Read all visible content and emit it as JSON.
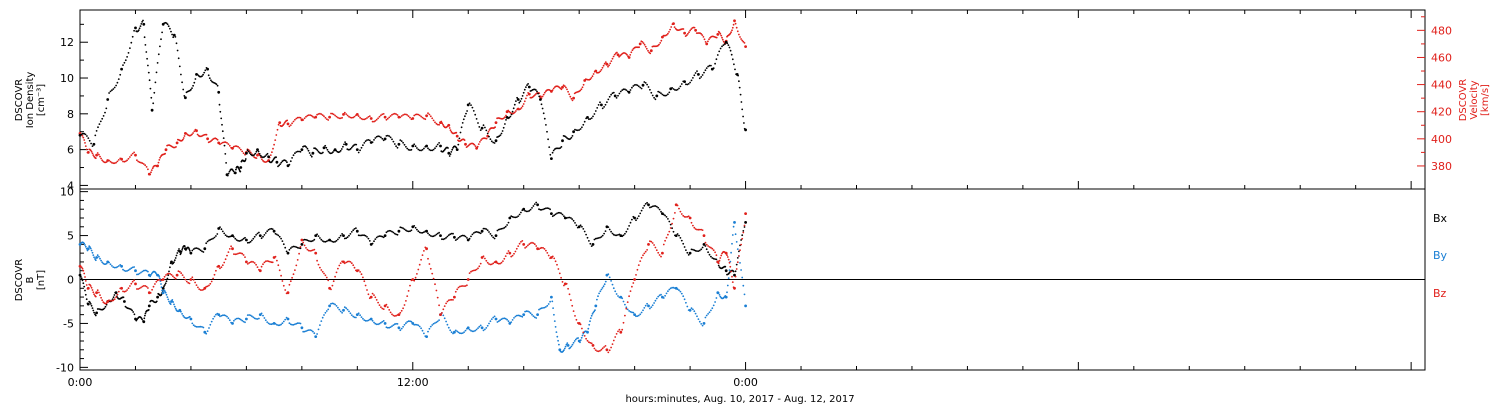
{
  "chart_data": [
    {
      "type": "scatter",
      "panel": "top",
      "ylabel_left": [
        "DSCOVR",
        "Ion Density",
        "[cm⁻³]"
      ],
      "ylabel_right": [
        "DSCOVR",
        "Velocity",
        "[km/s]"
      ],
      "ylim_left": [
        3.8,
        13.8
      ],
      "ylim_right": [
        363,
        495
      ],
      "left_ticks": [
        "4",
        "6",
        "8",
        "10",
        "12"
      ],
      "right_ticks": [
        "380",
        "400",
        "420",
        "440",
        "460",
        "480"
      ],
      "series": [
        {
          "name": "Ion Density",
          "color": "#000000",
          "axis": "left",
          "x": [
            0.0,
            0.5,
            1.0,
            1.5,
            2.0,
            2.3,
            2.6,
            3.0,
            3.4,
            3.8,
            4.2,
            4.6,
            5.0,
            5.3,
            5.6,
            5.8,
            6.0,
            6.4,
            6.8,
            7.1,
            7.5,
            8.0,
            8.4,
            8.8,
            9.2,
            9.6,
            10.0,
            10.5,
            11.0,
            11.5,
            12.0,
            12.5,
            13.0,
            13.3,
            13.6,
            14.0,
            14.5,
            15.0,
            15.4,
            15.8,
            16.2,
            16.6,
            17.0,
            17.4,
            17.8,
            18.3,
            18.8,
            19.3,
            19.8,
            20.3,
            20.8,
            21.3,
            21.8,
            22.3,
            22.8,
            23.3,
            23.7,
            24.0
          ],
          "y": [
            6.8,
            6.3,
            8.8,
            10.5,
            12.8,
            13.0,
            8.2,
            13.0,
            12.4,
            8.9,
            10.2,
            10.5,
            9.2,
            4.6,
            4.7,
            5.0,
            5.8,
            6.0,
            5.6,
            5.3,
            5.1,
            6.0,
            5.8,
            6.1,
            6.0,
            6.3,
            6.0,
            6.4,
            6.6,
            6.3,
            6.2,
            6.2,
            6.2,
            5.8,
            6.0,
            8.5,
            7.2,
            6.5,
            7.8,
            8.8,
            9.5,
            8.8,
            5.5,
            6.5,
            7.0,
            7.8,
            8.5,
            9.0,
            9.2,
            9.6,
            9.0,
            9.4,
            9.8,
            10.2,
            10.5,
            12.0,
            10.2,
            7.1
          ]
        },
        {
          "name": "Velocity",
          "color": "#e0201b",
          "axis": "right",
          "x": [
            0.0,
            0.3,
            0.6,
            1.0,
            1.5,
            2.0,
            2.5,
            2.8,
            3.1,
            3.5,
            3.8,
            4.2,
            4.6,
            5.0,
            5.5,
            6.0,
            6.4,
            6.8,
            7.2,
            7.5,
            8.0,
            8.5,
            9.0,
            9.5,
            10.0,
            10.5,
            11.0,
            11.5,
            12.0,
            12.5,
            13.0,
            13.3,
            13.6,
            13.9,
            14.3,
            14.7,
            15.0,
            15.4,
            15.8,
            16.2,
            16.6,
            17.0,
            17.4,
            17.8,
            18.2,
            18.6,
            19.0,
            19.4,
            19.8,
            20.2,
            20.6,
            21.0,
            21.4,
            21.8,
            22.2,
            22.6,
            23.0,
            23.3,
            23.6,
            24.0
          ],
          "y": [
            404,
            390,
            388,
            384,
            385,
            388,
            374,
            380,
            392,
            397,
            404,
            406,
            400,
            397,
            393,
            390,
            388,
            384,
            412,
            411,
            414,
            416,
            416,
            418,
            418,
            415,
            416,
            416,
            415,
            417,
            412,
            410,
            402,
            396,
            393,
            402,
            412,
            420,
            422,
            433,
            431,
            435,
            438,
            430,
            443,
            450,
            455,
            462,
            460,
            470,
            465,
            475,
            485,
            478,
            480,
            470,
            477,
            472,
            487,
            468
          ]
        }
      ]
    },
    {
      "type": "scatter",
      "panel": "bottom",
      "ylabel_left": [
        "DSCOVR",
        "B",
        "[nT]"
      ],
      "ylim": [
        -10.3,
        10.3
      ],
      "left_ticks": [
        "-10",
        "-5",
        "0",
        "5",
        "10"
      ],
      "legend": [
        "Bx",
        "By",
        "Bz"
      ],
      "xlabel": "hours:minutes, Aug. 10, 2017 - Aug. 12, 2017",
      "xlim": [
        0,
        48.5
      ],
      "x_ticks": [
        {
          "t": 0,
          "label": "0:00"
        },
        {
          "t": 12,
          "label": "12:00"
        },
        {
          "t": 24,
          "label": "0:00"
        }
      ],
      "series": [
        {
          "name": "Bx",
          "color": "#000000",
          "x": [
            0.0,
            0.3,
            0.6,
            1.0,
            1.3,
            1.6,
            2.0,
            2.3,
            2.5,
            2.8,
            3.0,
            3.3,
            3.6,
            3.8,
            4.0,
            4.5,
            5.0,
            5.5,
            6.0,
            6.5,
            7.0,
            7.5,
            8.0,
            8.5,
            9.0,
            9.5,
            10.0,
            10.5,
            11.0,
            11.5,
            12.0,
            12.5,
            13.0,
            13.5,
            14.0,
            14.5,
            15.0,
            15.5,
            16.0,
            16.5,
            17.0,
            17.5,
            18.0,
            18.5,
            19.0,
            19.5,
            20.0,
            20.5,
            21.0,
            21.5,
            22.0,
            22.5,
            23.0,
            23.3,
            23.6,
            24.0
          ],
          "y": [
            0.5,
            -2.8,
            -3.8,
            -2.5,
            -1.5,
            -2.5,
            -4.5,
            -4.8,
            -3.0,
            -2.0,
            -1.0,
            2.0,
            3.2,
            3.5,
            3.0,
            3.5,
            5.8,
            5.0,
            4.5,
            5.0,
            5.5,
            3.0,
            4.0,
            5.0,
            4.5,
            5.0,
            5.5,
            4.0,
            5.0,
            5.5,
            6.0,
            5.5,
            5.0,
            4.8,
            4.5,
            5.5,
            5.0,
            7.0,
            8.0,
            8.5,
            7.5,
            7.0,
            6.0,
            4.0,
            6.0,
            5.0,
            7.0,
            8.5,
            7.5,
            5.0,
            3.0,
            4.0,
            2.0,
            1.0,
            0.5,
            6.5
          ]
        },
        {
          "name": "By",
          "color": "#1a7fd4",
          "x": [
            0.0,
            0.3,
            0.6,
            1.0,
            1.5,
            2.0,
            2.5,
            2.8,
            3.0,
            3.3,
            3.6,
            4.0,
            4.5,
            5.0,
            5.5,
            6.0,
            6.5,
            7.0,
            7.5,
            8.0,
            8.5,
            9.0,
            9.5,
            10.0,
            10.5,
            11.0,
            11.5,
            12.0,
            12.5,
            13.0,
            13.5,
            14.0,
            14.5,
            15.0,
            15.5,
            16.0,
            16.5,
            17.0,
            17.3,
            17.6,
            18.0,
            18.3,
            18.6,
            19.0,
            19.5,
            20.0,
            20.5,
            21.0,
            21.5,
            22.0,
            22.5,
            23.0,
            23.3,
            23.6,
            24.0
          ],
          "y": [
            4.0,
            3.5,
            2.5,
            2.0,
            1.5,
            1.0,
            0.5,
            0.5,
            -1.5,
            -2.5,
            -3.5,
            -4.5,
            -6.0,
            -4.0,
            -5.0,
            -4.5,
            -4.0,
            -5.0,
            -4.5,
            -5.5,
            -6.5,
            -3.0,
            -3.5,
            -4.0,
            -4.5,
            -5.0,
            -5.5,
            -5.0,
            -6.5,
            -4.0,
            -6.0,
            -5.5,
            -5.5,
            -4.5,
            -5.0,
            -4.0,
            -4.0,
            -2.0,
            -8.0,
            -7.5,
            -7.0,
            -6.0,
            -3.0,
            0.5,
            -2.0,
            -4.0,
            -3.0,
            -2.0,
            -1.0,
            -3.5,
            -5.0,
            -1.5,
            -2.0,
            6.5,
            -3.0
          ]
        },
        {
          "name": "Bz",
          "color": "#e0201b",
          "x": [
            0.0,
            0.3,
            0.6,
            1.0,
            1.5,
            2.0,
            2.5,
            3.0,
            3.5,
            4.0,
            4.5,
            5.0,
            5.5,
            6.0,
            6.5,
            7.0,
            7.5,
            8.0,
            8.5,
            9.0,
            9.5,
            10.0,
            10.5,
            11.0,
            11.5,
            12.0,
            12.5,
            13.0,
            13.5,
            14.0,
            14.5,
            15.0,
            15.5,
            16.0,
            16.5,
            17.0,
            17.5,
            18.0,
            18.5,
            19.0,
            19.5,
            20.0,
            20.5,
            21.0,
            21.5,
            22.0,
            22.5,
            23.0,
            23.3,
            23.6,
            24.0
          ],
          "y": [
            1.5,
            -1.0,
            -1.5,
            -2.5,
            -1.0,
            -0.5,
            -1.5,
            0.0,
            0.5,
            0.0,
            -1.0,
            1.5,
            3.5,
            2.0,
            1.0,
            2.5,
            -1.5,
            4.5,
            3.0,
            -1.0,
            2.0,
            1.0,
            -2.0,
            -3.0,
            -4.0,
            0.0,
            3.5,
            -4.0,
            -2.0,
            0.0,
            2.5,
            2.0,
            3.0,
            4.0,
            3.5,
            2.5,
            -0.5,
            -5.0,
            -7.5,
            -8.0,
            -6.0,
            0.0,
            4.0,
            3.0,
            8.5,
            7.0,
            5.0,
            2.0,
            3.0,
            -1.0,
            7.5
          ]
        }
      ]
    }
  ]
}
